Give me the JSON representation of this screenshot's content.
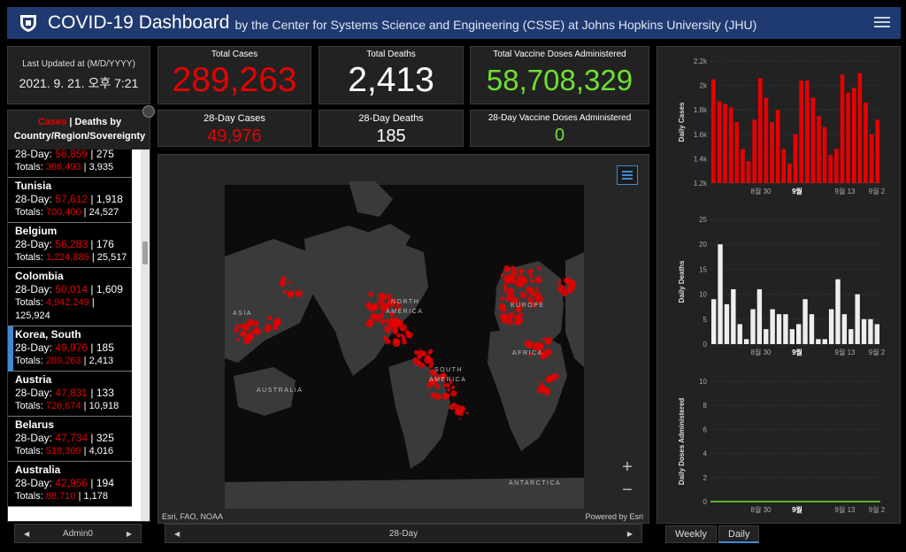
{
  "header": {
    "title": "COVID-19 Dashboard",
    "subtitle": "by the Center for Systems Science and Engineering (CSSE) at Johns Hopkins University (JHU)",
    "logo_icon": "jhu-shield-icon",
    "menu_icon": "hamburger-menu-icon"
  },
  "last_updated": {
    "label": "Last Updated at (M/D/YYYY)",
    "value": "2021. 9. 21. 오후 7:21"
  },
  "totals": {
    "cases": {
      "label": "Total Cases",
      "value": "289,263"
    },
    "deaths": {
      "label": "Total Deaths",
      "value": "2,413"
    },
    "vaccine": {
      "label": "Total Vaccine Doses Administered",
      "value": "58,708,329"
    }
  },
  "day28": {
    "cases": {
      "label": "28-Day Cases",
      "value": "49,976"
    },
    "deaths": {
      "label": "28-Day Deaths",
      "value": "185"
    },
    "vaccine": {
      "label": "28-Day Vaccine Doses Administered",
      "value": "0"
    }
  },
  "list": {
    "tab_cases": "Cases",
    "separator": " | ",
    "tab_deaths": "Deaths",
    "header_rest": " by Country/Region/Sovereignty",
    "items": [
      {
        "country": "",
        "p28": "28-Day: ",
        "cases28": "58,859",
        "sep": " | ",
        "deaths28": "275",
        "pt": "Totals: ",
        "casesTot": "386,493",
        "deathsTot": "3,935",
        "partial": true
      },
      {
        "country": "Tunisia",
        "p28": "28-Day: ",
        "cases28": "57,612",
        "sep": " | ",
        "deaths28": "1,918",
        "pt": "Totals: ",
        "casesTot": "700,400",
        "deathsTot": "24,527"
      },
      {
        "country": "Belgium",
        "p28": "28-Day: ",
        "cases28": "56,283",
        "sep": " | ",
        "deaths28": "176",
        "pt": "Totals: ",
        "casesTot": "1,224,885",
        "deathsTot": "25,517"
      },
      {
        "country": "Colombia",
        "p28": "28-Day: ",
        "cases28": "50,014",
        "sep": " | ",
        "deaths28": "1,609",
        "pt": "Totals: ",
        "casesTot": "4,942,249",
        "deathsTot": "125,924"
      },
      {
        "country": "Korea, South",
        "p28": "28-Day: ",
        "cases28": "49,976",
        "sep": " | ",
        "deaths28": "185",
        "pt": "Totals: ",
        "casesTot": "289,263",
        "deathsTot": "2,413",
        "selected": true
      },
      {
        "country": "Austria",
        "p28": "28-Day: ",
        "cases28": "47,831",
        "sep": " | ",
        "deaths28": "133",
        "pt": "Totals: ",
        "casesTot": "726,674",
        "deathsTot": "10,918"
      },
      {
        "country": "Belarus",
        "p28": "28-Day: ",
        "cases28": "47,734",
        "sep": " | ",
        "deaths28": "325",
        "pt": "Totals: ",
        "casesTot": "518,369",
        "deathsTot": "4,016"
      },
      {
        "country": "Australia",
        "p28": "28-Day: ",
        "cases28": "42,956",
        "sep": " | ",
        "deaths28": "194",
        "pt": "Totals: ",
        "casesTot": "88,710",
        "deathsTot": "1,178"
      }
    ]
  },
  "left_pager": {
    "label": "Admin0"
  },
  "map": {
    "labels": [
      "ASIA",
      "NORTH",
      "AMERICA",
      "EUROPE",
      "AFRICA",
      "SOUTH",
      "AMERICA",
      "AUSTRALIA",
      "ANTARCTICA"
    ],
    "attribution_left": "Esri, FAO, NOAA",
    "attribution_right": "Powered by Esri",
    "zoom_in": "+",
    "zoom_out": "−",
    "legend_icon": "legend-list-icon"
  },
  "map_pager": {
    "label": "28-Day"
  },
  "tabs": {
    "weekly": "Weekly",
    "daily": "Daily"
  },
  "colors": {
    "cases": "#e60000",
    "deaths": "#eeeeee",
    "vaccine": "#70e02f",
    "accent": "#3f8ad6",
    "header": "#1f3a70"
  },
  "chart_data": [
    {
      "type": "bar",
      "ylabel": "Daily Cases",
      "ylim": [
        1200,
        2200
      ],
      "yticks": [
        "1.2k",
        "1.4k",
        "1.6k",
        "1.8k",
        "2k",
        "2.2k"
      ],
      "xticks": [
        "8월 30",
        "9월",
        "9월 13",
        "9월 2"
      ],
      "values": [
        2050,
        1870,
        1850,
        1820,
        1700,
        1480,
        1380,
        1720,
        2060,
        1900,
        1700,
        1800,
        1480,
        1360,
        1600,
        2040,
        2040,
        1900,
        1750,
        1660,
        1430,
        1480,
        2090,
        1940,
        1980,
        2100,
        1860,
        1600,
        1720
      ]
    },
    {
      "type": "bar",
      "ylabel": "Daily Deaths",
      "ylim": [
        0,
        25
      ],
      "yticks": [
        "0",
        "5",
        "10",
        "15",
        "20",
        "25"
      ],
      "xticks": [
        "8월 30",
        "9월",
        "9월 13",
        "9월 2"
      ],
      "values": [
        9,
        20,
        8,
        11,
        4,
        1,
        7,
        11,
        3,
        7,
        6,
        6,
        3,
        4,
        9,
        6,
        1,
        1,
        7,
        13,
        6,
        3,
        10,
        5,
        5,
        4
      ]
    },
    {
      "type": "bar",
      "ylabel": "Daily Doses Administered",
      "ylim": [
        0,
        10
      ],
      "yticks": [
        "0",
        "2",
        "4",
        "6",
        "8",
        "10"
      ],
      "xticks": [
        "8월 30",
        "9월",
        "9월 13",
        "9월 2"
      ],
      "values": [
        0,
        0,
        0,
        0,
        0,
        0,
        0,
        0,
        0,
        0,
        0,
        0,
        0,
        0,
        0,
        0,
        0,
        0,
        0,
        0,
        0,
        0,
        0,
        0,
        0,
        0,
        0,
        0
      ]
    }
  ]
}
